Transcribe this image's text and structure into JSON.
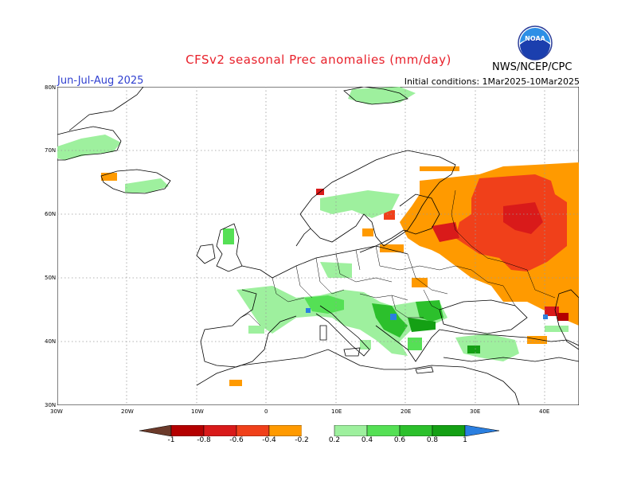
{
  "title": "CFSv2 seasonal Prec anomalies (mm/day)",
  "period": "Jun-Jul-Aug 2025",
  "initial_conditions": "Initial conditions: 1Mar2025-10Mar2025",
  "agency": "NWS/NCEP/CPC",
  "logo_text": "NOAA",
  "lat_labels": [
    "80N",
    "70N",
    "60N",
    "50N",
    "40N",
    "30N"
  ],
  "lon_labels": [
    "30W",
    "20W",
    "10W",
    "0",
    "10E",
    "20E",
    "30E",
    "40E"
  ],
  "colorbar_labels": [
    "-1",
    "-0.8",
    "-0.6",
    "-0.4",
    "-0.2",
    "0.2",
    "0.4",
    "0.6",
    "0.8",
    "1"
  ],
  "colors": {
    "title": "#e8202a",
    "period": "#3040d0",
    "dry_extreme": "#6b3a2a",
    "dry_1": "#b40000",
    "dry_08": "#d91a1a",
    "dry_06": "#f0401a",
    "dry_04": "#ff6a1a",
    "dry_02": "#ff9a00",
    "wet_02": "#9ef09e",
    "wet_04": "#55e055",
    "wet_06": "#2cc02c",
    "wet_08": "#14a014",
    "wet_1": "#2a7fe0",
    "wet_extreme": "#1050d0"
  }
}
